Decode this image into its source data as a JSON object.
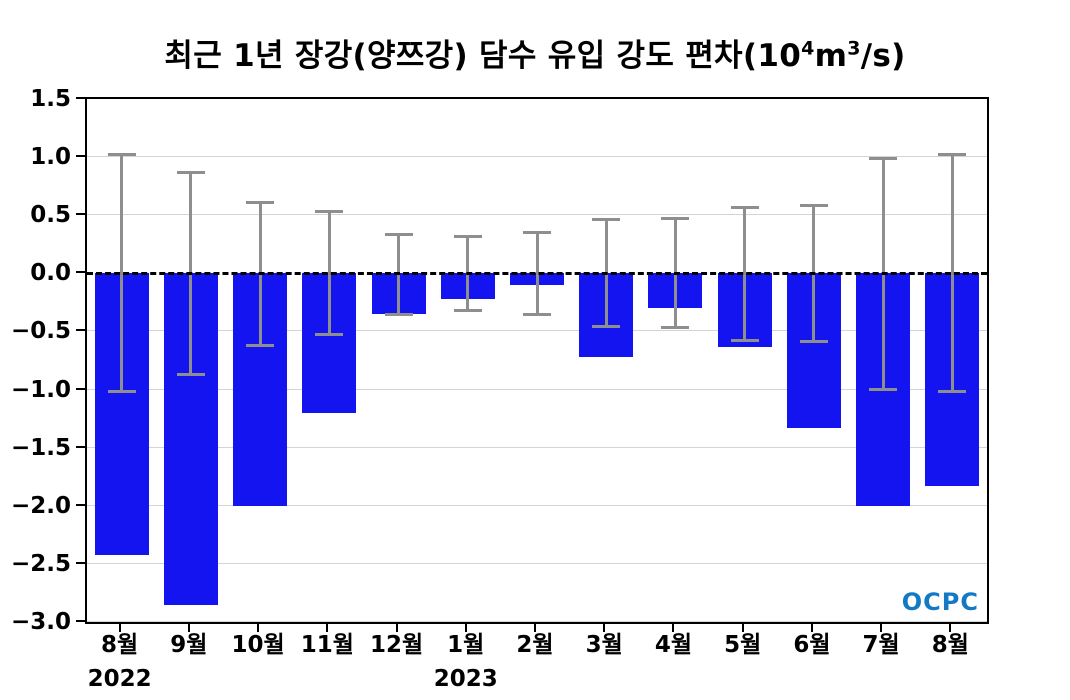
{
  "title": {
    "main": "최근 1년 장강(양쯔강) 담수 유입 강도 편차(10",
    "sup1": "4",
    "mid": "m",
    "sup2": "3",
    "tail": "/s)"
  },
  "watermark": {
    "text": "OCPC",
    "color": "#1479c4"
  },
  "chart_data": {
    "type": "bar",
    "title": "최근 1년 장강(양쯔강) 담수 유입 강도 편차(10⁴m³/s)",
    "categories": [
      "8월",
      "9월",
      "10월",
      "11월",
      "12월",
      "1월",
      "2월",
      "3월",
      "4월",
      "5월",
      "6월",
      "7월",
      "8월"
    ],
    "year_labels": [
      {
        "index": 0,
        "label": "2022"
      },
      {
        "index": 5,
        "label": "2023"
      }
    ],
    "values": [
      -2.42,
      -2.85,
      -2.0,
      -1.2,
      -0.35,
      -0.22,
      -0.1,
      -0.72,
      -0.3,
      -0.63,
      -1.33,
      -2.0,
      -1.83
    ],
    "error_top": [
      1.02,
      0.87,
      0.61,
      0.53,
      0.33,
      0.32,
      0.35,
      0.46,
      0.47,
      0.57,
      0.58,
      0.99,
      1.02
    ],
    "error_bottom": [
      -1.02,
      -0.87,
      -0.62,
      -0.53,
      -0.35,
      -0.32,
      -0.35,
      -0.46,
      -0.47,
      -0.58,
      -0.59,
      -1.0,
      -1.02
    ],
    "ylim": [
      -3.0,
      1.5
    ],
    "yticks": [
      1.5,
      1.0,
      0.5,
      0.0,
      -0.5,
      -1.0,
      -1.5,
      -2.0,
      -2.5,
      -3.0
    ],
    "ytick_labels": [
      "1.5",
      "1.0",
      "0.5",
      "0.0",
      "−0.5",
      "−1.0",
      "−1.5",
      "−2.0",
      "−2.5",
      "−3.0"
    ],
    "xlabel": "",
    "ylabel": "",
    "grid": true,
    "zero_line": "dashed",
    "legend": "none",
    "colors": {
      "bar": "#1414f0",
      "error": "#8e8e8e",
      "grid": "#d4d4d4"
    }
  }
}
